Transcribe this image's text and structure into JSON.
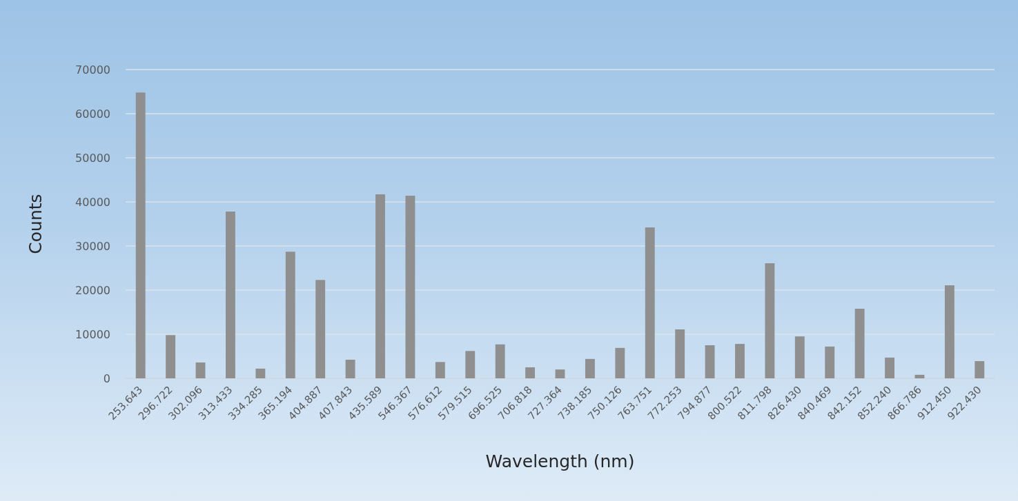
{
  "chart_data": {
    "type": "bar",
    "xlabel": "Wavelength (nm)",
    "ylabel": "Counts",
    "categories": [
      "253.643",
      "296.722",
      "302.096",
      "313.433",
      "334.285",
      "365.194",
      "404.887",
      "407.843",
      "435.589",
      "546.367",
      "576.612",
      "579.515",
      "696.525",
      "706.818",
      "727.364",
      "738.185",
      "750.126",
      "763.751",
      "772.253",
      "794.877",
      "800.522",
      "811.798",
      "826.430",
      "840.469",
      "842.152",
      "852.240",
      "866.786",
      "912.450",
      "922.430"
    ],
    "values": [
      64800,
      9800,
      3600,
      37800,
      2200,
      28700,
      22300,
      4200,
      41700,
      41400,
      3700,
      6200,
      7700,
      2500,
      2000,
      4400,
      6900,
      34200,
      11100,
      7500,
      7800,
      26100,
      9500,
      7200,
      15800,
      4700,
      800,
      21100,
      3900
    ],
    "color": "#8f8f8f",
    "ylim": [
      0,
      70000
    ],
    "yticks": [
      0,
      10000,
      20000,
      30000,
      40000,
      50000,
      60000,
      70000
    ],
    "grid": "y"
  }
}
